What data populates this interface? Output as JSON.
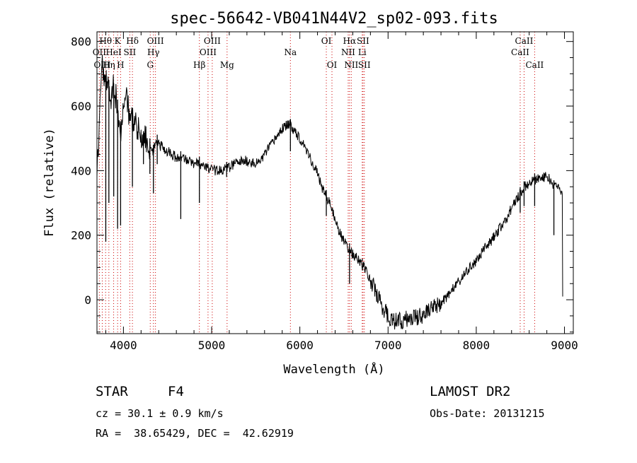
{
  "chart_data": {
    "type": "line",
    "title": "spec-56642-VB041N44V2_sp02-093.fits",
    "xlabel": "Wavelength (Å)",
    "ylabel": "Flux (relative)",
    "xlim": [
      3700,
      9100
    ],
    "ylim": [
      -105,
      830
    ],
    "xticks": [
      4000,
      5000,
      6000,
      7000,
      8000,
      9000
    ],
    "yticks": [
      0,
      200,
      400,
      600,
      800
    ],
    "grid": false,
    "series": [
      {
        "points": [
          [
            3700,
            400
          ],
          [
            3730,
            560
          ],
          [
            3760,
            720
          ],
          [
            3790,
            650
          ],
          [
            3820,
            700
          ],
          [
            3850,
            620
          ],
          [
            3880,
            660
          ],
          [
            3900,
            640
          ],
          [
            3930,
            610
          ],
          [
            3950,
            560
          ],
          [
            3970,
            530
          ],
          [
            4000,
            600
          ],
          [
            4030,
            650
          ],
          [
            4060,
            580
          ],
          [
            4080,
            560
          ],
          [
            4100,
            570
          ],
          [
            4130,
            540
          ],
          [
            4160,
            530
          ],
          [
            4190,
            520
          ],
          [
            4220,
            500
          ],
          [
            4250,
            510
          ],
          [
            4280,
            470
          ],
          [
            4300,
            480
          ],
          [
            4340,
            460
          ],
          [
            4370,
            500
          ],
          [
            4400,
            480
          ],
          [
            4450,
            470
          ],
          [
            4500,
            460
          ],
          [
            4550,
            450
          ],
          [
            4600,
            440
          ],
          [
            4650,
            440
          ],
          [
            4700,
            435
          ],
          [
            4750,
            430
          ],
          [
            4800,
            420
          ],
          [
            4850,
            425
          ],
          [
            4900,
            415
          ],
          [
            4950,
            410
          ],
          [
            5000,
            405
          ],
          [
            5050,
            400
          ],
          [
            5100,
            400
          ],
          [
            5150,
            405
          ],
          [
            5200,
            410
          ],
          [
            5250,
            420
          ],
          [
            5300,
            425
          ],
          [
            5350,
            430
          ],
          [
            5400,
            430
          ],
          [
            5450,
            425
          ],
          [
            5500,
            420
          ],
          [
            5550,
            430
          ],
          [
            5600,
            450
          ],
          [
            5650,
            470
          ],
          [
            5700,
            490
          ],
          [
            5750,
            510
          ],
          [
            5800,
            530
          ],
          [
            5850,
            540
          ],
          [
            5900,
            540
          ],
          [
            5950,
            520
          ],
          [
            6000,
            500
          ],
          [
            6050,
            480
          ],
          [
            6100,
            450
          ],
          [
            6150,
            420
          ],
          [
            6200,
            390
          ],
          [
            6250,
            350
          ],
          [
            6300,
            320
          ],
          [
            6350,
            290
          ],
          [
            6400,
            250
          ],
          [
            6450,
            210
          ],
          [
            6500,
            180
          ],
          [
            6550,
            160
          ],
          [
            6600,
            140
          ],
          [
            6650,
            130
          ],
          [
            6700,
            110
          ],
          [
            6750,
            90
          ],
          [
            6800,
            60
          ],
          [
            6850,
            30
          ],
          [
            6900,
            0
          ],
          [
            6950,
            -30
          ],
          [
            7000,
            -50
          ],
          [
            7050,
            -60
          ],
          [
            7100,
            -70
          ],
          [
            7150,
            -65
          ],
          [
            7200,
            -60
          ],
          [
            7250,
            -60
          ],
          [
            7300,
            -55
          ],
          [
            7350,
            -50
          ],
          [
            7400,
            -45
          ],
          [
            7450,
            -40
          ],
          [
            7500,
            -30
          ],
          [
            7550,
            -20
          ],
          [
            7600,
            -10
          ],
          [
            7650,
            5
          ],
          [
            7700,
            20
          ],
          [
            7750,
            40
          ],
          [
            7800,
            55
          ],
          [
            7850,
            70
          ],
          [
            7900,
            90
          ],
          [
            7950,
            105
          ],
          [
            8000,
            120
          ],
          [
            8050,
            140
          ],
          [
            8100,
            160
          ],
          [
            8150,
            175
          ],
          [
            8200,
            195
          ],
          [
            8250,
            215
          ],
          [
            8300,
            235
          ],
          [
            8350,
            255
          ],
          [
            8400,
            285
          ],
          [
            8450,
            310
          ],
          [
            8500,
            330
          ],
          [
            8550,
            350
          ],
          [
            8600,
            360
          ],
          [
            8650,
            370
          ],
          [
            8700,
            375
          ],
          [
            8750,
            380
          ],
          [
            8800,
            380
          ],
          [
            8850,
            370
          ],
          [
            8880,
            350
          ],
          [
            8900,
            360
          ],
          [
            8950,
            340
          ],
          [
            8975,
            330
          ],
          [
            8980,
            10
          ]
        ],
        "absorption_dips": [
          [
            3800,
            180
          ],
          [
            3835,
            300
          ],
          [
            3890,
            320
          ],
          [
            3934,
            220
          ],
          [
            3968,
            230
          ],
          [
            4102,
            350
          ],
          [
            4227,
            420
          ],
          [
            4300,
            390
          ],
          [
            4340,
            330
          ],
          [
            4383,
            420
          ],
          [
            4650,
            250
          ],
          [
            4861,
            300
          ],
          [
            5170,
            380
          ],
          [
            5893,
            460
          ],
          [
            6300,
            260
          ],
          [
            6563,
            50
          ],
          [
            6708,
            120
          ],
          [
            8498,
            270
          ],
          [
            8542,
            290
          ],
          [
            8662,
            290
          ],
          [
            8880,
            200
          ]
        ]
      }
    ],
    "lines": [
      {
        "wl": 3727,
        "label": "OII",
        "row": 2
      },
      {
        "wl": 3760,
        "label": "OIII",
        "row": 3
      },
      {
        "wl": 3798,
        "label": "Hθ",
        "row": 1
      },
      {
        "wl": 3835,
        "label": "Hη",
        "row": 3
      },
      {
        "wl": 3889,
        "label": "HeI",
        "row": 2
      },
      {
        "wl": 3934,
        "label": "K",
        "row": 1
      },
      {
        "wl": 3968,
        "label": "H",
        "row": 3
      },
      {
        "wl": 4072,
        "label": "SII",
        "row": 2
      },
      {
        "wl": 4102,
        "label": "Hδ",
        "row": 1
      },
      {
        "wl": 4304,
        "label": "G",
        "row": 3
      },
      {
        "wl": 4340,
        "label": "Hγ",
        "row": 2
      },
      {
        "wl": 4363,
        "label": "OIII",
        "row": 1
      },
      {
        "wl": 4861,
        "label": "Hβ",
        "row": 3
      },
      {
        "wl": 4959,
        "label": "OIII",
        "row": 2
      },
      {
        "wl": 5007,
        "label": "OIII",
        "row": 1
      },
      {
        "wl": 5175,
        "label": "Mg",
        "row": 3
      },
      {
        "wl": 5893,
        "label": "Na",
        "row": 2
      },
      {
        "wl": 6300,
        "label": "OI",
        "row": 1
      },
      {
        "wl": 6364,
        "label": "OI",
        "row": 3
      },
      {
        "wl": 6548,
        "label": "NII",
        "row": 2
      },
      {
        "wl": 6563,
        "label": "Hα",
        "row": 1
      },
      {
        "wl": 6583,
        "label": "NII",
        "row": 3
      },
      {
        "wl": 6707,
        "label": "Li",
        "row": 2
      },
      {
        "wl": 6716,
        "label": "SII",
        "row": 1
      },
      {
        "wl": 6731,
        "label": "SII",
        "row": 3
      },
      {
        "wl": 8498,
        "label": "CaII",
        "row": 2
      },
      {
        "wl": 8542,
        "label": "CaII",
        "row": 1
      },
      {
        "wl": 8662,
        "label": "CaII",
        "row": 3
      }
    ]
  },
  "info": {
    "object": "STAR",
    "subclass": "F4",
    "survey": "LAMOST DR2",
    "cz": "cz = 30.1 ± 0.9 km/s",
    "obsdate": "Obs-Date: 20131215",
    "coords": "RA =  38.65429, DEC =  42.62919"
  }
}
